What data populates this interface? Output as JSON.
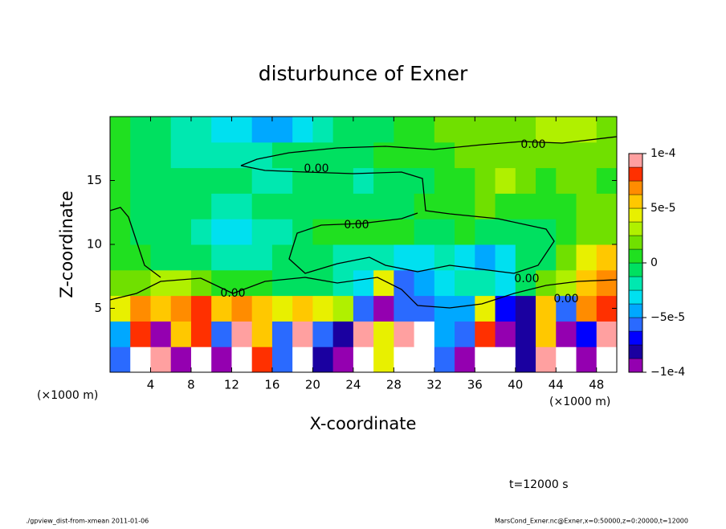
{
  "chart_data": {
    "type": "contour",
    "title": "disturbunce of Exner",
    "x_label": "X-coordinate",
    "y_label": "Z-coordinate",
    "x_unit": "(×1000 m)",
    "y_unit": "(×1000 m)",
    "time_label": "t=12000 s",
    "footer_left": "./gpview_dist-from-xmean  2011-01-06",
    "footer_right": "MarsCond_Exner.nc@Exner,x=0:50000,z=0:20000,t=12000",
    "xlim": [
      0,
      50
    ],
    "xticks": [
      4,
      8,
      12,
      16,
      20,
      24,
      28,
      32,
      36,
      40,
      44,
      48
    ],
    "ylim": [
      0,
      20
    ],
    "yticks": [
      5,
      10,
      15
    ],
    "contour_labels": [
      "0.00",
      "0.00",
      "0.00",
      "0.00",
      "0.00",
      "0.00"
    ],
    "colorbar": {
      "levels": [
        -0.0001,
        -8.75e-05,
        -7.5e-05,
        -6.25e-05,
        -5e-05,
        -3.75e-05,
        -2.5e-05,
        -1.25e-05,
        0,
        1.25e-05,
        2.5e-05,
        3.75e-05,
        5e-05,
        6.25e-05,
        7.5e-05,
        8.75e-05,
        0.0001
      ],
      "colors": [
        "#9400b0",
        "#1a00a0",
        "#0000ff",
        "#2a6aff",
        "#00a8ff",
        "#00e0f0",
        "#00e8b0",
        "#00e060",
        "#20e020",
        "#70e000",
        "#b0f000",
        "#e8f000",
        "#ffc800",
        "#ff8c00",
        "#ff3000",
        "#ffa0a0"
      ],
      "ticks": [
        {
          "value": 0.0001,
          "label": "1e-4"
        },
        {
          "value": 5e-05,
          "label": "5e-5"
        },
        0,
        {
          "value": -5e-05,
          "label": "−5e-5"
        },
        {
          "value": -0.0001,
          "label": "−1e-4"
        }
      ]
    },
    "field": [
      [
        -6e-05,
        -0.00012,
        9e-05,
        -0.0001,
        0.00012,
        -9e-05,
        0.00012,
        8e-05,
        -6e-05,
        0.00012,
        -8e-05,
        -0.0001,
        0.00012,
        5e-05,
        0.00012,
        0.00012,
        -6e-05,
        -9e-05,
        0.00012,
        -0.00012,
        -8e-05,
        9e-05,
        -0.00012,
        -9e-05,
        0.00012
      ],
      [
        -4e-05,
        8e-05,
        -0.0001,
        6e-05,
        8e-05,
        -6e-05,
        9e-05,
        6e-05,
        -5e-05,
        9e-05,
        -6e-05,
        -8e-05,
        9e-05,
        4e-05,
        0.0001,
        -0.00012,
        -4e-05,
        -6e-05,
        8e-05,
        -0.0001,
        -8e-05,
        6e-05,
        -9e-05,
        -7e-05,
        9e-05
      ],
      [
        5e-05,
        7e-05,
        6e-05,
        7e-05,
        8e-05,
        6e-05,
        7e-05,
        6e-05,
        5e-05,
        6e-05,
        4e-05,
        3e-05,
        -6e-05,
        -9e-05,
        -5e-05,
        -6e-05,
        -4e-05,
        -4e-05,
        5e-05,
        -7e-05,
        -8e-05,
        6e-05,
        -6e-05,
        7e-05,
        8e-05
      ],
      [
        2e-05,
        2e-05,
        3e-05,
        3e-05,
        2e-05,
        1e-05,
        1e-05,
        1e-05,
        0,
        0,
        -1e-05,
        -2e-05,
        -3e-05,
        4e-05,
        -5e-05,
        -4e-05,
        -3e-05,
        -2e-05,
        -2e-05,
        -3e-05,
        -1e-05,
        2e-05,
        3e-05,
        6e-05,
        7e-05
      ],
      [
        1e-05,
        1e-05,
        0,
        -1e-05,
        -1e-05,
        -2e-05,
        -2e-05,
        -2e-05,
        -1e-05,
        0,
        -1e-05,
        -2e-05,
        -2e-05,
        -2e-05,
        -3e-05,
        -3e-05,
        -2e-05,
        -3e-05,
        -4e-05,
        -3e-05,
        -1e-05,
        0,
        2e-05,
        4e-05,
        6e-05
      ],
      [
        1e-05,
        0,
        -1e-05,
        -1e-05,
        -2e-05,
        -3e-05,
        -3e-05,
        -2e-05,
        -2e-05,
        0,
        1e-05,
        1e-05,
        1e-05,
        1e-05,
        1e-05,
        0,
        0,
        1e-05,
        0,
        -1e-05,
        -1e-05,
        0,
        1e-05,
        2e-05,
        2e-05
      ],
      [
        1e-05,
        0,
        0,
        -1e-05,
        -1e-05,
        -2e-05,
        -2e-05,
        -1e-05,
        -1e-05,
        0,
        0,
        -1e-05,
        -1e-05,
        0,
        0,
        1e-05,
        1e-05,
        1e-05,
        2e-05,
        1e-05,
        1e-05,
        1e-05,
        1e-05,
        2e-05,
        2e-05
      ],
      [
        1e-05,
        0,
        -1e-05,
        -1e-05,
        -1e-05,
        -1e-05,
        -1e-05,
        -2e-05,
        -2e-05,
        -1e-05,
        -1e-05,
        -1e-05,
        -2e-05,
        -1e-05,
        -1e-05,
        0,
        1e-05,
        1e-05,
        2e-05,
        3e-05,
        2e-05,
        1e-05,
        2e-05,
        2e-05,
        1e-05
      ],
      [
        1e-05,
        0,
        -1e-05,
        -2e-05,
        -2e-05,
        -2e-05,
        -2e-05,
        -2e-05,
        -1e-05,
        -1e-05,
        0,
        0,
        0,
        1e-05,
        1e-05,
        1e-05,
        1e-05,
        2e-05,
        2e-05,
        2e-05,
        2e-05,
        2e-05,
        2e-05,
        2e-05,
        2e-05
      ],
      [
        1e-05,
        0,
        -1e-05,
        -2e-05,
        -2e-05,
        -3e-05,
        -3e-05,
        -4e-05,
        -4e-05,
        -3e-05,
        -2e-05,
        -1e-05,
        0,
        0,
        1e-05,
        1e-05,
        2e-05,
        2e-05,
        2e-05,
        2e-05,
        2e-05,
        3e-05,
        3e-05,
        3e-05,
        2e-05
      ]
    ]
  }
}
